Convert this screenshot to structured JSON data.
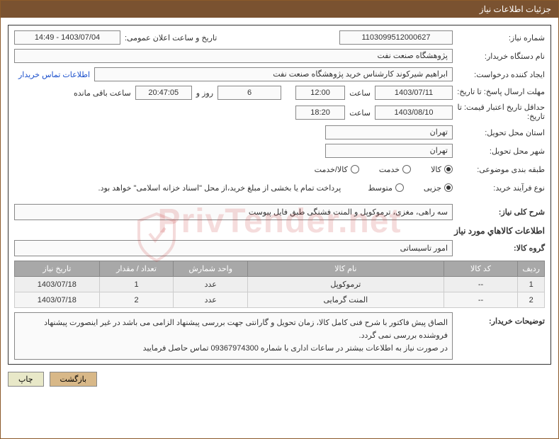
{
  "header": {
    "title": "جزئیات اطلاعات نیاز"
  },
  "form": {
    "need_number_label": "شماره نیاز:",
    "need_number": "1103099512000627",
    "announce_label": "تاریخ و ساعت اعلان عمومی:",
    "announce_value": "1403/07/04 - 14:49",
    "buyer_org_label": "نام دستگاه خریدار:",
    "buyer_org": "پژوهشگاه صنعت نفت",
    "requester_label": "ایجاد کننده درخواست:",
    "requester": "ابراهیم شیرکوند کارشناس خرید پژوهشگاه صنعت نفت",
    "contact_link": "اطلاعات تماس خریدار",
    "deadline_label": "مهلت ارسال پاسخ: تا تاریخ:",
    "deadline_date": "1403/07/11",
    "time_label": "ساعت",
    "deadline_time": "12:00",
    "days_remain": "6",
    "days_remain_suffix": "روز و",
    "countdown": "20:47:05",
    "remaining_suffix": "ساعت باقی مانده",
    "validity_label": "حداقل تاریخ اعتبار قیمت: تا تاریخ:",
    "validity_date": "1403/08/10",
    "validity_time": "18:20",
    "province_label": "استان محل تحویل:",
    "province": "تهران",
    "city_label": "شهر محل تحویل:",
    "city": "تهران",
    "category_label": "طبقه بندی موضوعی:",
    "cat_goods": "کالا",
    "cat_service": "خدمت",
    "cat_both": "کالا/خدمت",
    "purchase_type_label": "نوع فرآیند خرید:",
    "pt_small": "جزیی",
    "pt_medium": "متوسط",
    "payment_note": "پرداخت تمام یا بخشی از مبلغ خرید،از محل \"اسناد خزانه اسلامی\" خواهد بود.",
    "summary_label": "شرح کلی نیاز:",
    "summary": "سه راهی، مغزی، ترموکوپل و المنت فشنگی طبق فایل پیوست",
    "items_header": "اطلاعات کالاهاي مورد نياز",
    "group_label": "گروه کالا:",
    "group": "امور تاسیساتی"
  },
  "table": {
    "columns": [
      "ردیف",
      "کد کالا",
      "نام کالا",
      "واحد شمارش",
      "تعداد / مقدار",
      "تاریخ نیاز"
    ],
    "col_widths": [
      "5%",
      "14%",
      "37%",
      "14%",
      "14%",
      "16%"
    ],
    "rows": [
      [
        "1",
        "--",
        "ترموکوپل",
        "عدد",
        "1",
        "1403/07/18"
      ],
      [
        "2",
        "--",
        "المنت گرمایی",
        "عدد",
        "2",
        "1403/07/18"
      ]
    ]
  },
  "buyer_notes": {
    "label": "توضیحات خریدار:",
    "line1": "الصاق پیش فاکتور با شرح فنی کامل کالا، زمان تحویل و گارانتی جهت بررسی پیشنهاد الزامی می باشد در غیر اینصورت پیشنهاد فروشنده بررسی نمی گردد.",
    "line2": "در صورت نیاز به اطلاعات بیشتر در ساعات اداری با شماره 09367974300 تماس حاصل فرمایید"
  },
  "buttons": {
    "print": "چاپ",
    "back": "بازگشت"
  },
  "watermark": {
    "text": "PrivTender.net"
  },
  "colors": {
    "header_bg": "#7a5230",
    "border": "#8b5a2b",
    "th_bg": "#a8a8a8",
    "link": "#1a4fcc",
    "btn_back": "#d8b888",
    "wm": "rgba(200,60,60,0.18)"
  }
}
